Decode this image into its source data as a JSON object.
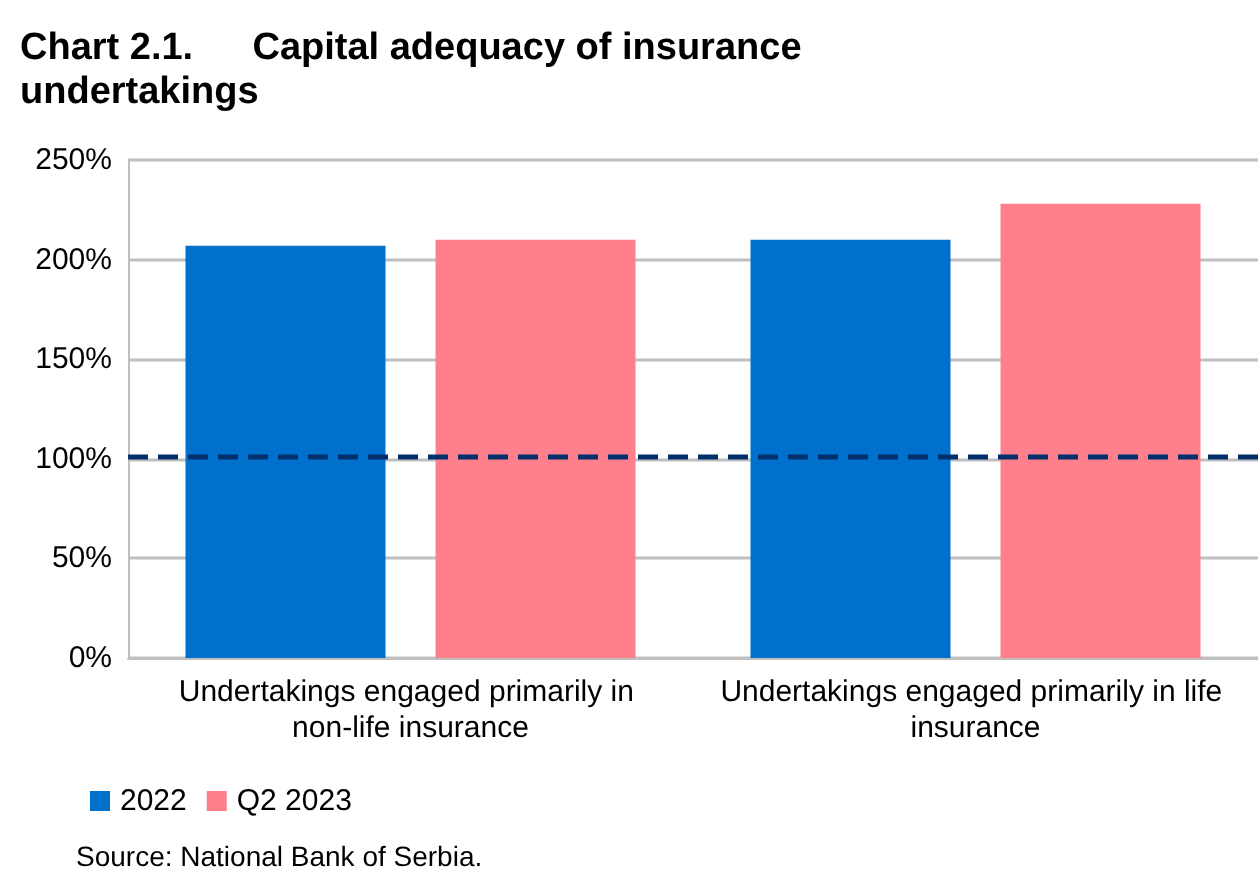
{
  "chart_data": {
    "type": "bar",
    "title": "Chart 2.1. Capital adequacy of insurance undertakings",
    "categories": [
      "Undertakings engaged primarily in non-life insurance",
      "Undertakings engaged primarily in life insurance"
    ],
    "series": [
      {
        "name": "2022",
        "color": "#0070cd",
        "values": [
          207,
          210
        ]
      },
      {
        "name": "Q2 2023",
        "color": "#ff808c",
        "values": [
          210,
          228
        ]
      }
    ],
    "ylim": [
      0,
      250
    ],
    "yticks": [
      {
        "value": 0,
        "label": "0%"
      },
      {
        "value": 50,
        "label": "50%"
      },
      {
        "value": 100,
        "label": "100%"
      },
      {
        "value": 150,
        "label": "150%"
      },
      {
        "value": 200,
        "label": "200%"
      },
      {
        "value": 250,
        "label": "250%"
      }
    ],
    "grid": "y",
    "legend": "bottom left",
    "ref_lines": [
      {
        "axis": "y",
        "value": 101,
        "color": "#002f6c",
        "line_style": "dashed"
      }
    ],
    "annotations": [
      "Source: National Bank of Serbia."
    ]
  }
}
